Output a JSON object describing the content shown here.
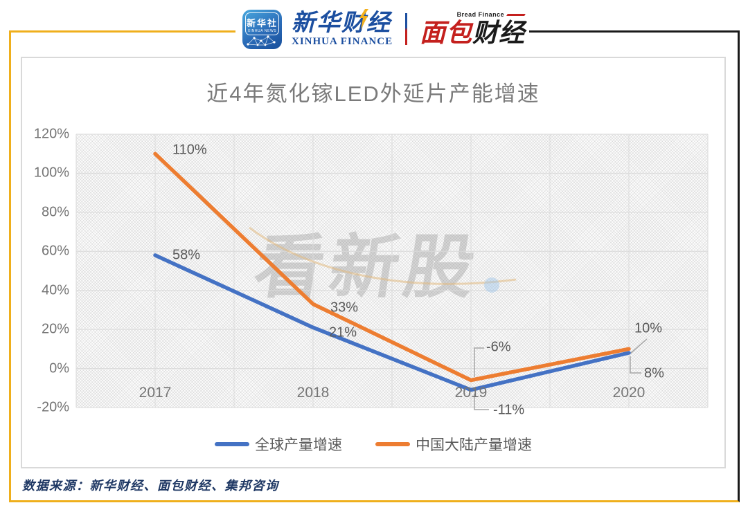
{
  "header": {
    "xinhua_news": {
      "name_cn": "新华社",
      "name_en": "XINHUA NEWS"
    },
    "xinhua_finance": {
      "name_cn": "新华财经",
      "name_en": "XINHUA FINANCE"
    },
    "bread_finance": {
      "name_en": "Bread Finance",
      "cn_part1": "面包",
      "cn_part2": "财经"
    }
  },
  "chart_data": {
    "type": "line",
    "title": "近4年氮化镓LED外延片产能增速",
    "categories": [
      "2017",
      "2018",
      "2019",
      "2020"
    ],
    "series": [
      {
        "name": "全球产量增速",
        "color": "#4472C4",
        "values": [
          58,
          21,
          -11,
          8
        ],
        "data_labels": [
          "58%",
          "21%",
          "-11%",
          "8%"
        ]
      },
      {
        "name": "中国大陆产量增速",
        "color": "#ED7D31",
        "values": [
          110,
          33,
          -6,
          10
        ],
        "data_labels": [
          "110%",
          "33%",
          "-6%",
          "10%"
        ]
      }
    ],
    "xlabel": "",
    "ylabel": "",
    "ylim": [
      -20,
      120
    ],
    "yticks": [
      {
        "value": 120,
        "label": "120%"
      },
      {
        "value": 100,
        "label": "100%"
      },
      {
        "value": 80,
        "label": "80%"
      },
      {
        "value": 60,
        "label": "60%"
      },
      {
        "value": 40,
        "label": "40%"
      },
      {
        "value": 20,
        "label": "20%"
      },
      {
        "value": 0,
        "label": "0%"
      },
      {
        "value": -20,
        "label": "-20%"
      }
    ],
    "grid": true,
    "legend_position": "bottom",
    "plot_background": "diagonal-crosshatch"
  },
  "watermark": {
    "text": "看新股"
  },
  "footer": {
    "source_text": "数据来源：新华财经、面包财经、集邦咨询"
  },
  "colors": {
    "series_global_blue": "#4472C4",
    "series_china_orange": "#ED7D31",
    "frame_gold": "#EFAF1C",
    "frame_black": "#1A1A1A",
    "gridline_gray": "#D9D9D9",
    "axis_text_gray": "#757575",
    "data_label_gray": "#595959",
    "title_gray": "#7A7A7A",
    "footer_navy": "#1F3864",
    "logo_blue": "#1C4FA0",
    "logo_red": "#C4201E"
  }
}
